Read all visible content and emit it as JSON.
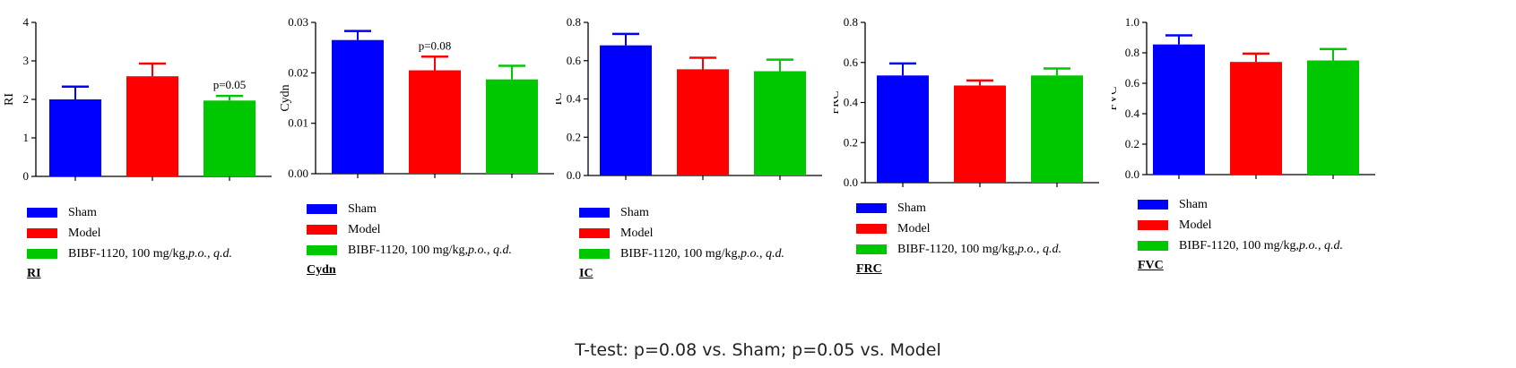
{
  "legend_labels": [
    "Sham",
    "Model",
    "BIBF-1120, 100 mg/kg, "
  ],
  "legend_italic": "p.o., q.d.",
  "colors": [
    "#0000ff",
    "#ff0000",
    "#00c800"
  ],
  "footnote": "T-test: p=0.08 vs. Sham; p=0.05 vs. Model",
  "chart_data": [
    {
      "type": "bar",
      "title": "RI",
      "ylabel": "RI",
      "categories": [
        "Sham",
        "Model",
        "BIBF-1120, 100 mg/kg, p.o., q.d."
      ],
      "values": [
        2.0,
        2.6,
        1.97
      ],
      "errors": [
        0.33,
        0.33,
        0.12
      ],
      "ylim": [
        0,
        4
      ],
      "yticks": [
        "0",
        "1",
        "2",
        "3",
        "4"
      ],
      "annotations": [
        {
          "bar": 2,
          "text": "p=0.05"
        }
      ]
    },
    {
      "type": "bar",
      "title": "Cydn",
      "ylabel": "Cydn",
      "categories": [
        "Sham",
        "Model",
        "BIBF-1120, 100 mg/kg, p.o., q.d."
      ],
      "values": [
        0.0265,
        0.0205,
        0.0187
      ],
      "errors": [
        0.0018,
        0.0027,
        0.0027
      ],
      "ylim": [
        0,
        0.03
      ],
      "yticks": [
        "0.00",
        "0.01",
        "0.02",
        "0.03"
      ],
      "annotations": [
        {
          "bar": 1,
          "text": "p=0.08"
        }
      ]
    },
    {
      "type": "bar",
      "title": "IC",
      "ylabel": "IC",
      "categories": [
        "Sham",
        "Model",
        "BIBF-1120, 100 mg/kg, p.o., q.d."
      ],
      "values": [
        0.68,
        0.555,
        0.545
      ],
      "errors": [
        0.06,
        0.06,
        0.06
      ],
      "ylim": [
        0,
        0.8
      ],
      "yticks": [
        "0.0",
        "0.2",
        "0.4",
        "0.6",
        "0.8"
      ],
      "annotations": []
    },
    {
      "type": "bar",
      "title": "FRC",
      "ylabel": "FRC",
      "categories": [
        "Sham",
        "Model",
        "BIBF-1120, 100 mg/kg, p.o., q.d."
      ],
      "values": [
        0.535,
        0.485,
        0.535
      ],
      "errors": [
        0.06,
        0.025,
        0.035
      ],
      "ylim": [
        0,
        0.8
      ],
      "yticks": [
        "0.0",
        "0.2",
        "0.4",
        "0.6",
        "0.8"
      ],
      "annotations": []
    },
    {
      "type": "bar",
      "title": "FVC",
      "ylabel": "FVC",
      "categories": [
        "Sham",
        "Model",
        "BIBF-1120, 100 mg/kg, p.o., q.d."
      ],
      "values": [
        0.855,
        0.74,
        0.75
      ],
      "errors": [
        0.06,
        0.055,
        0.075
      ],
      "ylim": [
        0,
        1.0
      ],
      "yticks": [
        "0.0",
        "0.2",
        "0.4",
        "0.6",
        "0.8",
        "1.0"
      ],
      "annotations": []
    }
  ]
}
